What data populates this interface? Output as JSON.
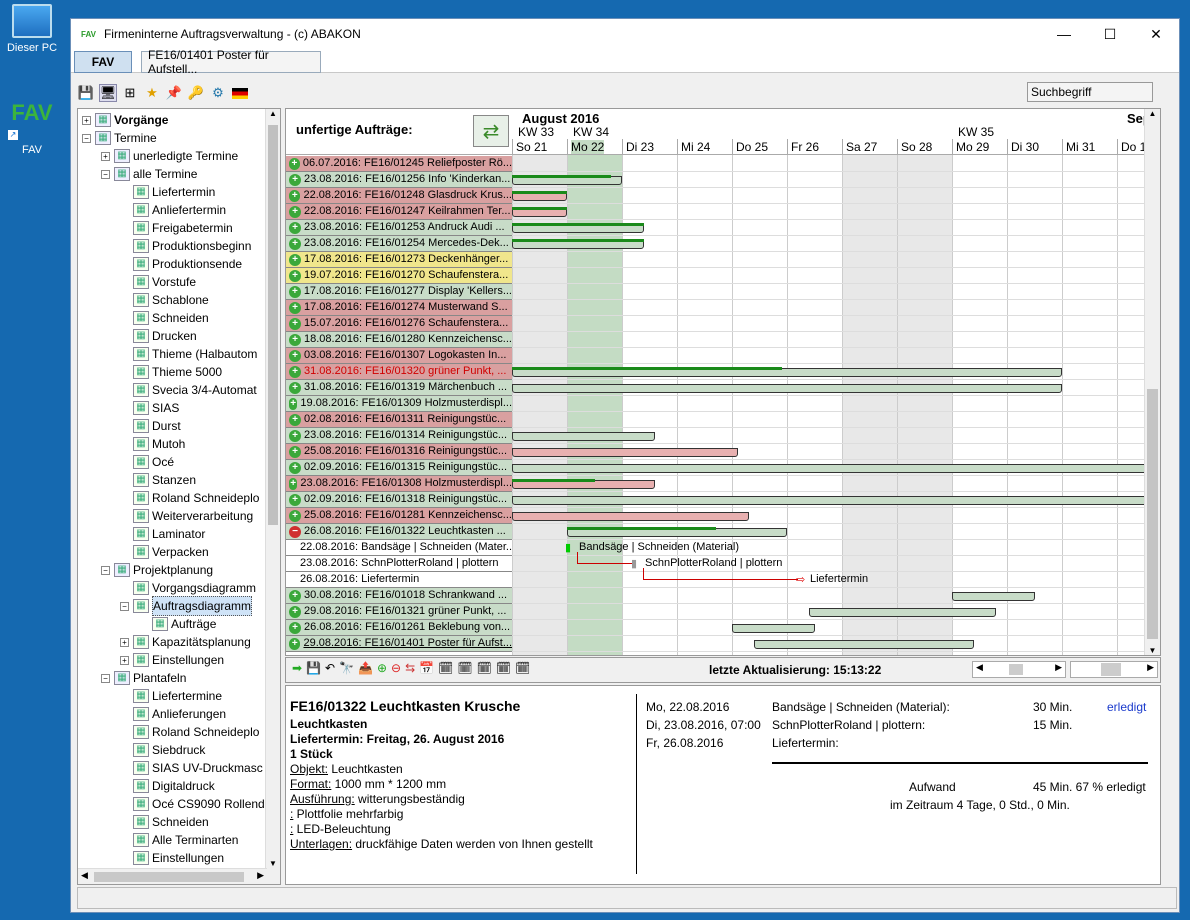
{
  "desktop": {
    "icon1": "Dieser PC",
    "icon2": "FAV"
  },
  "window": {
    "title": "Firmeninterne Auftragsverwaltung - (c) ABAKON",
    "min": "—",
    "max": "☐",
    "close": "✕"
  },
  "tabs": {
    "main": "FAV",
    "doc": "FE16/01401 Poster für Aufstell..."
  },
  "search": {
    "placeholder": "Suchbegriff"
  },
  "tree": [
    {
      "l": "Vorgänge",
      "lvl": 0,
      "exp": "+",
      "bold": true
    },
    {
      "l": "Termine",
      "lvl": 0,
      "exp": "−"
    },
    {
      "l": "unerledigte Termine",
      "lvl": 1,
      "exp": "+"
    },
    {
      "l": "alle Termine",
      "lvl": 1,
      "exp": "−"
    },
    {
      "l": "Liefertermin",
      "lvl": 2
    },
    {
      "l": "Anliefertermin",
      "lvl": 2
    },
    {
      "l": "Freigabetermin",
      "lvl": 2
    },
    {
      "l": "Produktionsbeginn",
      "lvl": 2
    },
    {
      "l": "Produktionsende",
      "lvl": 2
    },
    {
      "l": "Vorstufe",
      "lvl": 2
    },
    {
      "l": "Schablone",
      "lvl": 2
    },
    {
      "l": "Schneiden",
      "lvl": 2
    },
    {
      "l": "Drucken",
      "lvl": 2
    },
    {
      "l": "Thieme (Halbautom",
      "lvl": 2
    },
    {
      "l": "Thieme 5000",
      "lvl": 2
    },
    {
      "l": "Svecia 3/4-Automat",
      "lvl": 2
    },
    {
      "l": "SIAS",
      "lvl": 2
    },
    {
      "l": "Durst",
      "lvl": 2
    },
    {
      "l": "Mutoh",
      "lvl": 2
    },
    {
      "l": "Océ",
      "lvl": 2
    },
    {
      "l": "Stanzen",
      "lvl": 2
    },
    {
      "l": "Roland Schneideplo",
      "lvl": 2
    },
    {
      "l": "Weiterverarbeitung",
      "lvl": 2
    },
    {
      "l": "Laminator",
      "lvl": 2
    },
    {
      "l": "Verpacken",
      "lvl": 2
    },
    {
      "l": "Projektplanung",
      "lvl": 1,
      "exp": "−"
    },
    {
      "l": "Vorgangsdiagramm",
      "lvl": 2
    },
    {
      "l": "Auftragsdiagramm",
      "lvl": 2,
      "exp": "−",
      "sel": true
    },
    {
      "l": "Aufträge",
      "lvl": 3
    },
    {
      "l": "Kapazitätsplanung",
      "lvl": 2,
      "exp": "+"
    },
    {
      "l": "Einstellungen",
      "lvl": 2,
      "exp": "+"
    },
    {
      "l": "Plantafeln",
      "lvl": 1,
      "exp": "−"
    },
    {
      "l": "Liefertermine",
      "lvl": 2
    },
    {
      "l": "Anlieferungen",
      "lvl": 2
    },
    {
      "l": "Roland Schneideplo",
      "lvl": 2
    },
    {
      "l": "Siebdruck",
      "lvl": 2
    },
    {
      "l": "SIAS UV-Druckmasc",
      "lvl": 2
    },
    {
      "l": "Digitaldruck",
      "lvl": 2
    },
    {
      "l": "Océ CS9090 Rollend",
      "lvl": 2
    },
    {
      "l": "Schneiden",
      "lvl": 2
    },
    {
      "l": "Alle Terminarten",
      "lvl": 2
    },
    {
      "l": "Einstellungen",
      "lvl": 2
    }
  ],
  "gantt": {
    "title": "unfertige Aufträge:",
    "month1": "August 2016",
    "month2": "Sept",
    "weeks": [
      {
        "l": "KW 33",
        "d": 0
      },
      {
        "l": "KW 34",
        "d": 1
      },
      {
        "l": "KW 35",
        "d": 8
      }
    ],
    "days": [
      "So 21",
      "Mo 22",
      "Di 23",
      "Mi 24",
      "Do 25",
      "Fr 26",
      "Sa 27",
      "So 28",
      "Mo 29",
      "Di 30",
      "Mi 31",
      "Do 1"
    ],
    "rows": [
      {
        "t": "06.07.2016: FE16/01245 Reliefposter Rö...",
        "c": "#d9a0a0",
        "s": "+"
      },
      {
        "t": "23.08.2016: FE16/01256 Info 'Kinderkan...",
        "c": "#c8dcc8",
        "s": "+",
        "bar": [
          0,
          2
        ],
        "bc": "#c8dcc8",
        "p": 1.8
      },
      {
        "t": "22.08.2016: FE16/01248 Glasdruck Krus...",
        "c": "#d9a0a0",
        "s": "+",
        "bar": [
          0,
          1
        ],
        "bc": "#e8b0b0",
        "p": 1
      },
      {
        "t": "22.08.2016: FE16/01247 Keilrahmen Ter...",
        "c": "#d9a0a0",
        "s": "+",
        "bar": [
          0,
          1
        ],
        "bc": "#e8b0b0",
        "p": 1
      },
      {
        "t": "23.08.2016: FE16/01253 Andruck Audi ...",
        "c": "#c8dcc8",
        "s": "+",
        "bar": [
          0,
          2.4
        ],
        "bc": "#c8dcc8",
        "p": 2.4
      },
      {
        "t": "23.08.2016: FE16/01254 Mercedes-Dek...",
        "c": "#c8dcc8",
        "s": "+",
        "bar": [
          0,
          2.4
        ],
        "bc": "#c8dcc8",
        "p": 2.4
      },
      {
        "t": "17.08.2016: FE16/01273 Deckenhänger...",
        "c": "#f0e68c",
        "s": "+"
      },
      {
        "t": "19.07.2016: FE16/01270 Schaufenstera...",
        "c": "#f0e68c",
        "s": "+"
      },
      {
        "t": "17.08.2016: FE16/01277 Display 'Kellers...",
        "c": "#c8dcc8",
        "s": "+"
      },
      {
        "t": "17.08.2016: FE16/01274 Musterwand S...",
        "c": "#d9a0a0",
        "s": "+"
      },
      {
        "t": "15.07.2016: FE16/01276 Schaufenstera...",
        "c": "#d9a0a0",
        "s": "+"
      },
      {
        "t": "18.08.2016: FE16/01280 Kennzeichensc...",
        "c": "#c8dcc8",
        "s": "+"
      },
      {
        "t": "03.08.2016: FE16/01307 Logokasten In...",
        "c": "#d9a0a0",
        "s": "+"
      },
      {
        "t": "31.08.2016: FE16/01320 grüner Punkt, ...",
        "c": "#d9a0a0",
        "s": "+",
        "red": true,
        "bar": [
          0,
          10
        ],
        "bc": "#c8dcc8",
        "p": 4.9
      },
      {
        "t": "31.08.2016: FE16/01319 Märchenbuch ...",
        "c": "#c8dcc8",
        "s": "+",
        "bar": [
          0,
          10
        ],
        "bc": "#c8dcc8",
        "p": 0
      },
      {
        "t": "19.08.2016: FE16/01309 Holzmusterdispl...",
        "c": "#c8dcc8",
        "s": "+"
      },
      {
        "t": "02.08.2016: FE16/01311 Reinigungstüc...",
        "c": "#d9a0a0",
        "s": "+"
      },
      {
        "t": "23.08.2016: FE16/01314 Reinigungstüc...",
        "c": "#c8dcc8",
        "s": "+",
        "bar": [
          0,
          2.6
        ],
        "bc": "#c8dcc8",
        "p": 0
      },
      {
        "t": "25.08.2016: FE16/01316 Reinigungstüc...",
        "c": "#d9a0a0",
        "s": "+",
        "bar": [
          0,
          4.1
        ],
        "bc": "#e8b0b0",
        "p": 0
      },
      {
        "t": "02.09.2016: FE16/01315 Reinigungstüc...",
        "c": "#c8dcc8",
        "s": "+",
        "bar": [
          0,
          11.8
        ],
        "bc": "#c8dcc8",
        "p": 0
      },
      {
        "t": "23.08.2016: FE16/01308 Holzmusterdispl...",
        "c": "#d9a0a0",
        "s": "+",
        "bar": [
          0,
          2.6
        ],
        "bc": "#e8b0b0",
        "p": 1.5
      },
      {
        "t": "02.09.2016: FE16/01318 Reinigungstüc...",
        "c": "#c8dcc8",
        "s": "+",
        "bar": [
          0,
          11.8
        ],
        "bc": "#c8dcc8",
        "p": 0
      },
      {
        "t": "25.08.2016: FE16/01281 Kennzeichensc...",
        "c": "#d9a0a0",
        "s": "+",
        "bar": [
          0,
          4.3
        ],
        "bc": "#e8b0b0",
        "p": 0
      },
      {
        "t": "26.08.2016: FE16/01322 Leuchtkasten ...",
        "c": "#c8dcc8",
        "s": "−",
        "bar": [
          1,
          5
        ],
        "bc": "#c8dcc8",
        "p": 2.7
      },
      {
        "t": "22.08.2016: Bandsäge | Schneiden (Mater...",
        "c": "#ffffff",
        "sub": true
      },
      {
        "t": "23.08.2016: SchnPlotterRoland | plottern",
        "c": "#ffffff",
        "sub": true
      },
      {
        "t": "26.08.2016: Liefertermin",
        "c": "#ffffff",
        "sub": true
      },
      {
        "t": "30.08.2016: FE16/01018 Schrankwand ...",
        "c": "#c8dcc8",
        "s": "+",
        "bar": [
          8,
          9.5
        ],
        "bc": "#c8dcc8",
        "p": 0
      },
      {
        "t": "29.08.2016: FE16/01321 grüner Punkt, ...",
        "c": "#c8dcc8",
        "s": "+",
        "bar": [
          5.4,
          8.8
        ],
        "bc": "#c8dcc8",
        "p": 0
      },
      {
        "t": "26.08.2016: FE16/01261 Beklebung von...",
        "c": "#c8dcc8",
        "s": "+",
        "bar": [
          4,
          5.5
        ],
        "bc": "#c8dcc8",
        "p": 0
      },
      {
        "t": "29.08.2016: FE16/01401 Poster für Aufst...",
        "c": "#c8dcc8",
        "s": "+",
        "bar": [
          4.4,
          8.4
        ],
        "bc": "#c8dcc8",
        "p": 0,
        "ul": true
      }
    ],
    "sub_labels": [
      "Bandsäge | Schneiden (Material)",
      "SchnPlotterRoland | plottern",
      "Liefertermin"
    ],
    "update_label": "letzte Aktualisierung: 15:13:22"
  },
  "details": {
    "title": "FE16/01322 Leuchtkasten Krusche",
    "line2": "Leuchtkasten",
    "line3": "Liefertermin: Freitag, 26. August 2016",
    "line4": "1 Stück",
    "obj_l": "Objekt:",
    "obj_v": " Leuchtkasten",
    "fmt_l": "Format:",
    "fmt_v": " 1000 mm * 1200 mm",
    "aus_l": "Ausführung:",
    "aus_v": " witterungsbeständig",
    "p1_l": ":",
    "p1_v": " Plottfolie mehrfarbig",
    "p2_l": ":",
    "p2_v": " LED-Beleuchtung",
    "unt_l": "Unterlagen:",
    "unt_v": " druckfähige Daten werden von Ihnen gestellt",
    "dates": [
      "Mo, 22.08.2016",
      "Di, 23.08.2016, 07:00",
      "Fr, 26.08.2016"
    ],
    "tasks": [
      "Bandsäge | Schneiden (Material):",
      "SchnPlotterRoland | plottern:",
      "Liefertermin:"
    ],
    "durs": [
      "30 Min.",
      "15 Min."
    ],
    "status": "erledigt",
    "aufwand_l": "Aufwand",
    "aufwand_v": "45 Min. 67 % erledigt",
    "zeitraum": "im Zeitraum 4 Tage, 0 Std., 0 Min."
  },
  "colors": {
    "accent": "#1569b0",
    "green_row": "#c8dcc8",
    "red_row": "#d9a0a0",
    "yellow_row": "#f0e68c",
    "today_col": "#c4dcc4",
    "weekend": "#e8e8e8"
  }
}
